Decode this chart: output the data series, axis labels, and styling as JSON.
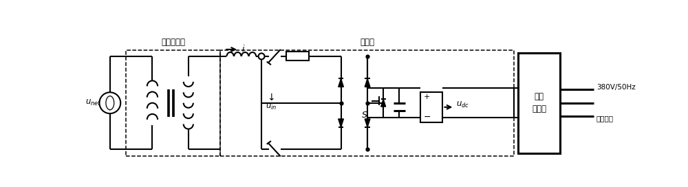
{
  "title": "整流器",
  "label_transformer": "牵引变压器",
  "label_unet": "$u_{net}$",
  "label_uin": "$\\downarrow u_{in}$",
  "label_i": "$i$",
  "label_udc": "$u_{dc}$",
  "label_inverter_line1": "三相",
  "label_inverter_line2": "逆变器",
  "label_output1": "380V/50Hz",
  "label_output2": "交流输出",
  "label_S": "$S$",
  "label_plus": "+",
  "label_minus": "−",
  "bg_color": "#ffffff",
  "line_color": "#000000",
  "lw": 1.5,
  "lw_thick": 2.2
}
